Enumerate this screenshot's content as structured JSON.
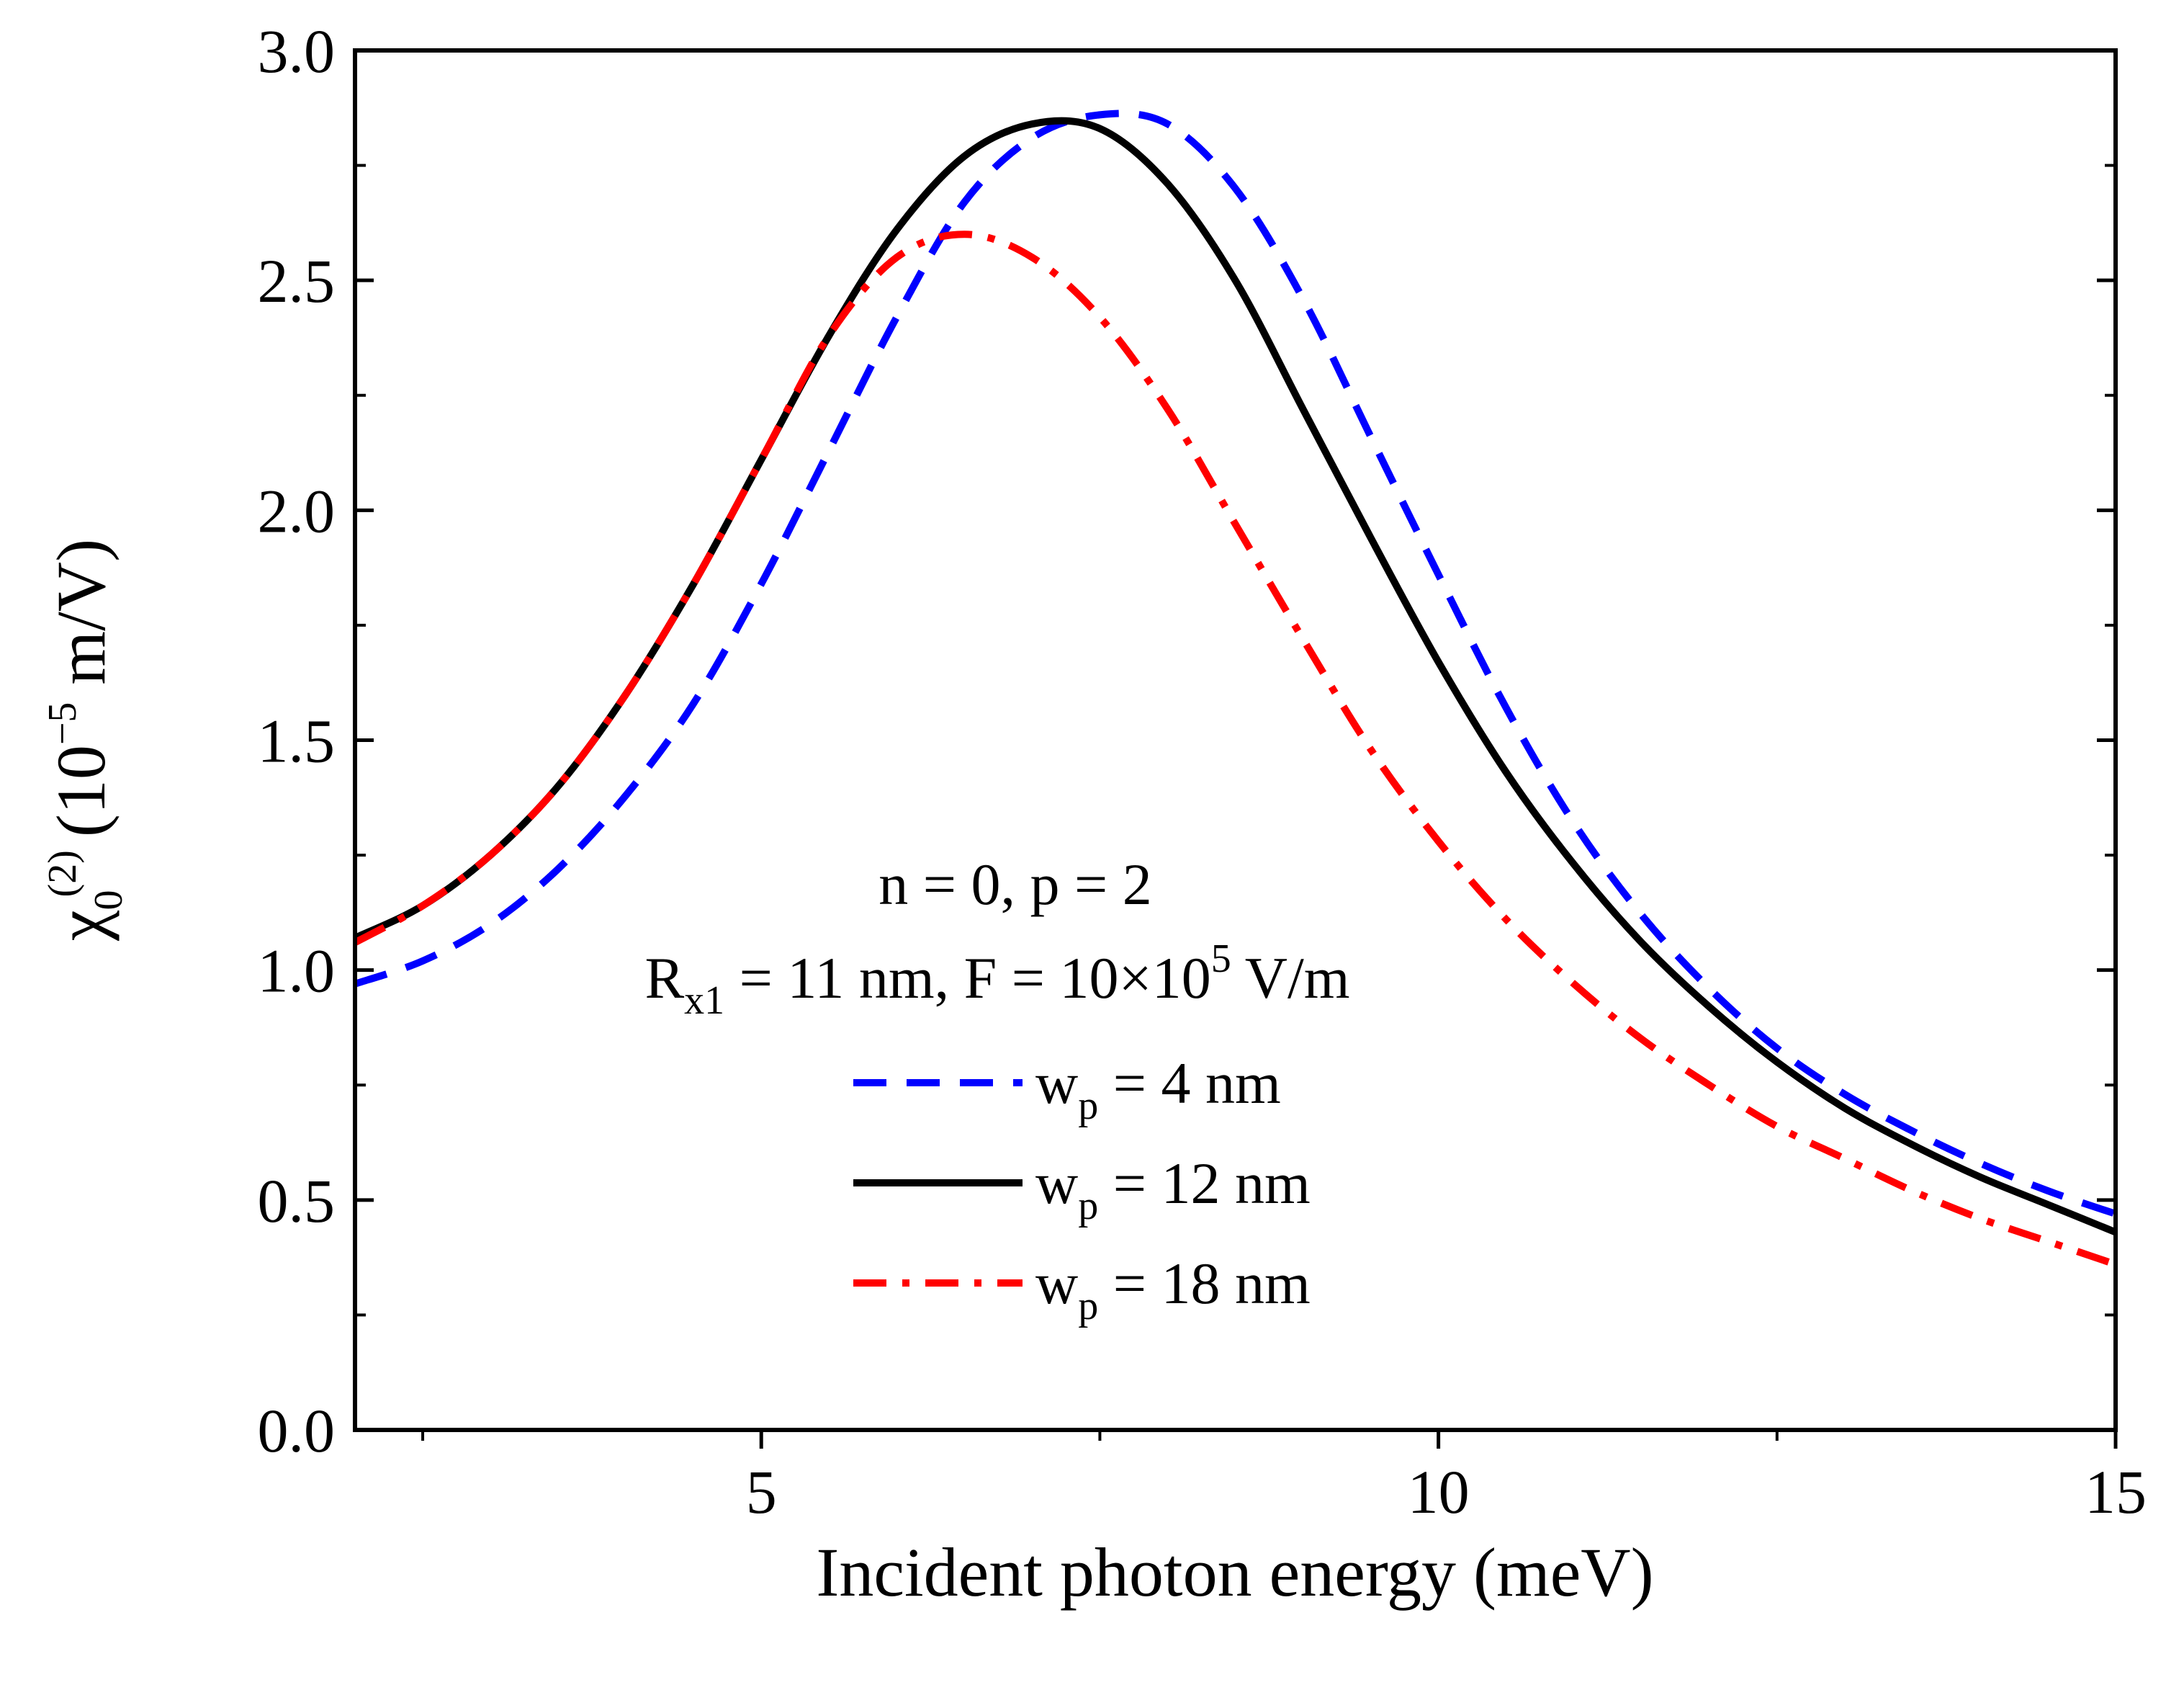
{
  "chart_data": {
    "type": "line",
    "xlabel": "Incident photon energy (meV)",
    "ylabel": {
      "base": "χ",
      "base_sub": "0",
      "base_sup": "(2)",
      "unit_open": "(10",
      "unit_exp": "−5",
      "unit_close": " m/V)"
    },
    "xlim": [
      2,
      15
    ],
    "ylim": [
      0,
      3
    ],
    "xticks": [
      {
        "value": 5,
        "label": "5"
      },
      {
        "value": 10,
        "label": "10"
      },
      {
        "value": 15,
        "label": "15"
      }
    ],
    "yticks": [
      {
        "value": 0,
        "label": "0.0"
      },
      {
        "value": 0.5,
        "label": "0.5"
      },
      {
        "value": 1,
        "label": "1.0"
      },
      {
        "value": 1.5,
        "label": "1.5"
      },
      {
        "value": 2,
        "label": "2.0"
      },
      {
        "value": 2.5,
        "label": "2.5"
      },
      {
        "value": 3,
        "label": "3.0"
      }
    ],
    "annotation": {
      "line1": "n = 0, p = 2",
      "line2": {
        "r": "R",
        "r_sub": "x1",
        "mid": " = 11 nm, F = 10×10",
        "f_sup": "5",
        "end": " V/m"
      }
    },
    "legend_position": "center",
    "series": [
      {
        "name": {
          "main": "w",
          "sub": "p",
          "rest": " = 4 nm"
        },
        "color": "#0000ff",
        "dash": "dashed",
        "x": [
          2,
          2.5,
          3,
          3.5,
          4,
          4.5,
          5,
          5.5,
          6,
          6.5,
          7,
          7.5,
          8,
          8.5,
          9,
          9.5,
          10,
          10.5,
          11,
          11.5,
          12,
          12.5,
          13,
          13.5,
          14,
          14.5,
          15
        ],
        "y": [
          0.97,
          1.02,
          1.1,
          1.22,
          1.38,
          1.58,
          1.84,
          2.13,
          2.42,
          2.67,
          2.81,
          2.86,
          2.84,
          2.7,
          2.46,
          2.16,
          1.86,
          1.57,
          1.32,
          1.12,
          0.96,
          0.83,
          0.73,
          0.65,
          0.58,
          0.52,
          0.47
        ]
      },
      {
        "name": {
          "main": "w",
          "sub": "p",
          "rest": " = 12 nm"
        },
        "color": "#000000",
        "dash": "solid",
        "x": [
          2,
          2.5,
          3,
          3.5,
          4,
          4.5,
          5,
          5.5,
          6,
          6.5,
          7,
          7.5,
          8,
          8.5,
          9,
          9.5,
          10,
          10.5,
          11,
          11.5,
          12,
          12.5,
          13,
          13.5,
          14,
          14.5,
          15
        ],
        "y": [
          1.07,
          1.14,
          1.25,
          1.4,
          1.6,
          1.84,
          2.11,
          2.38,
          2.61,
          2.77,
          2.84,
          2.83,
          2.71,
          2.5,
          2.22,
          1.94,
          1.67,
          1.43,
          1.23,
          1.06,
          0.92,
          0.8,
          0.7,
          0.62,
          0.55,
          0.49,
          0.43
        ]
      },
      {
        "name": {
          "main": "w",
          "sub": "p",
          "rest": " = 18 nm"
        },
        "color": "#ff0000",
        "dash": "dashdot",
        "x": [
          2,
          2.5,
          3,
          3.5,
          4,
          4.5,
          5,
          5.5,
          6,
          6.5,
          7,
          7.5,
          8,
          8.5,
          9,
          9.5,
          10,
          10.5,
          11,
          11.5,
          12,
          12.5,
          13,
          13.5,
          14,
          14.5,
          15
        ],
        "y": [
          1.06,
          1.14,
          1.25,
          1.4,
          1.6,
          1.84,
          2.11,
          2.38,
          2.55,
          2.6,
          2.55,
          2.42,
          2.22,
          1.97,
          1.72,
          1.48,
          1.28,
          1.11,
          0.97,
          0.85,
          0.75,
          0.66,
          0.59,
          0.52,
          0.46,
          0.41,
          0.36
        ]
      }
    ]
  }
}
